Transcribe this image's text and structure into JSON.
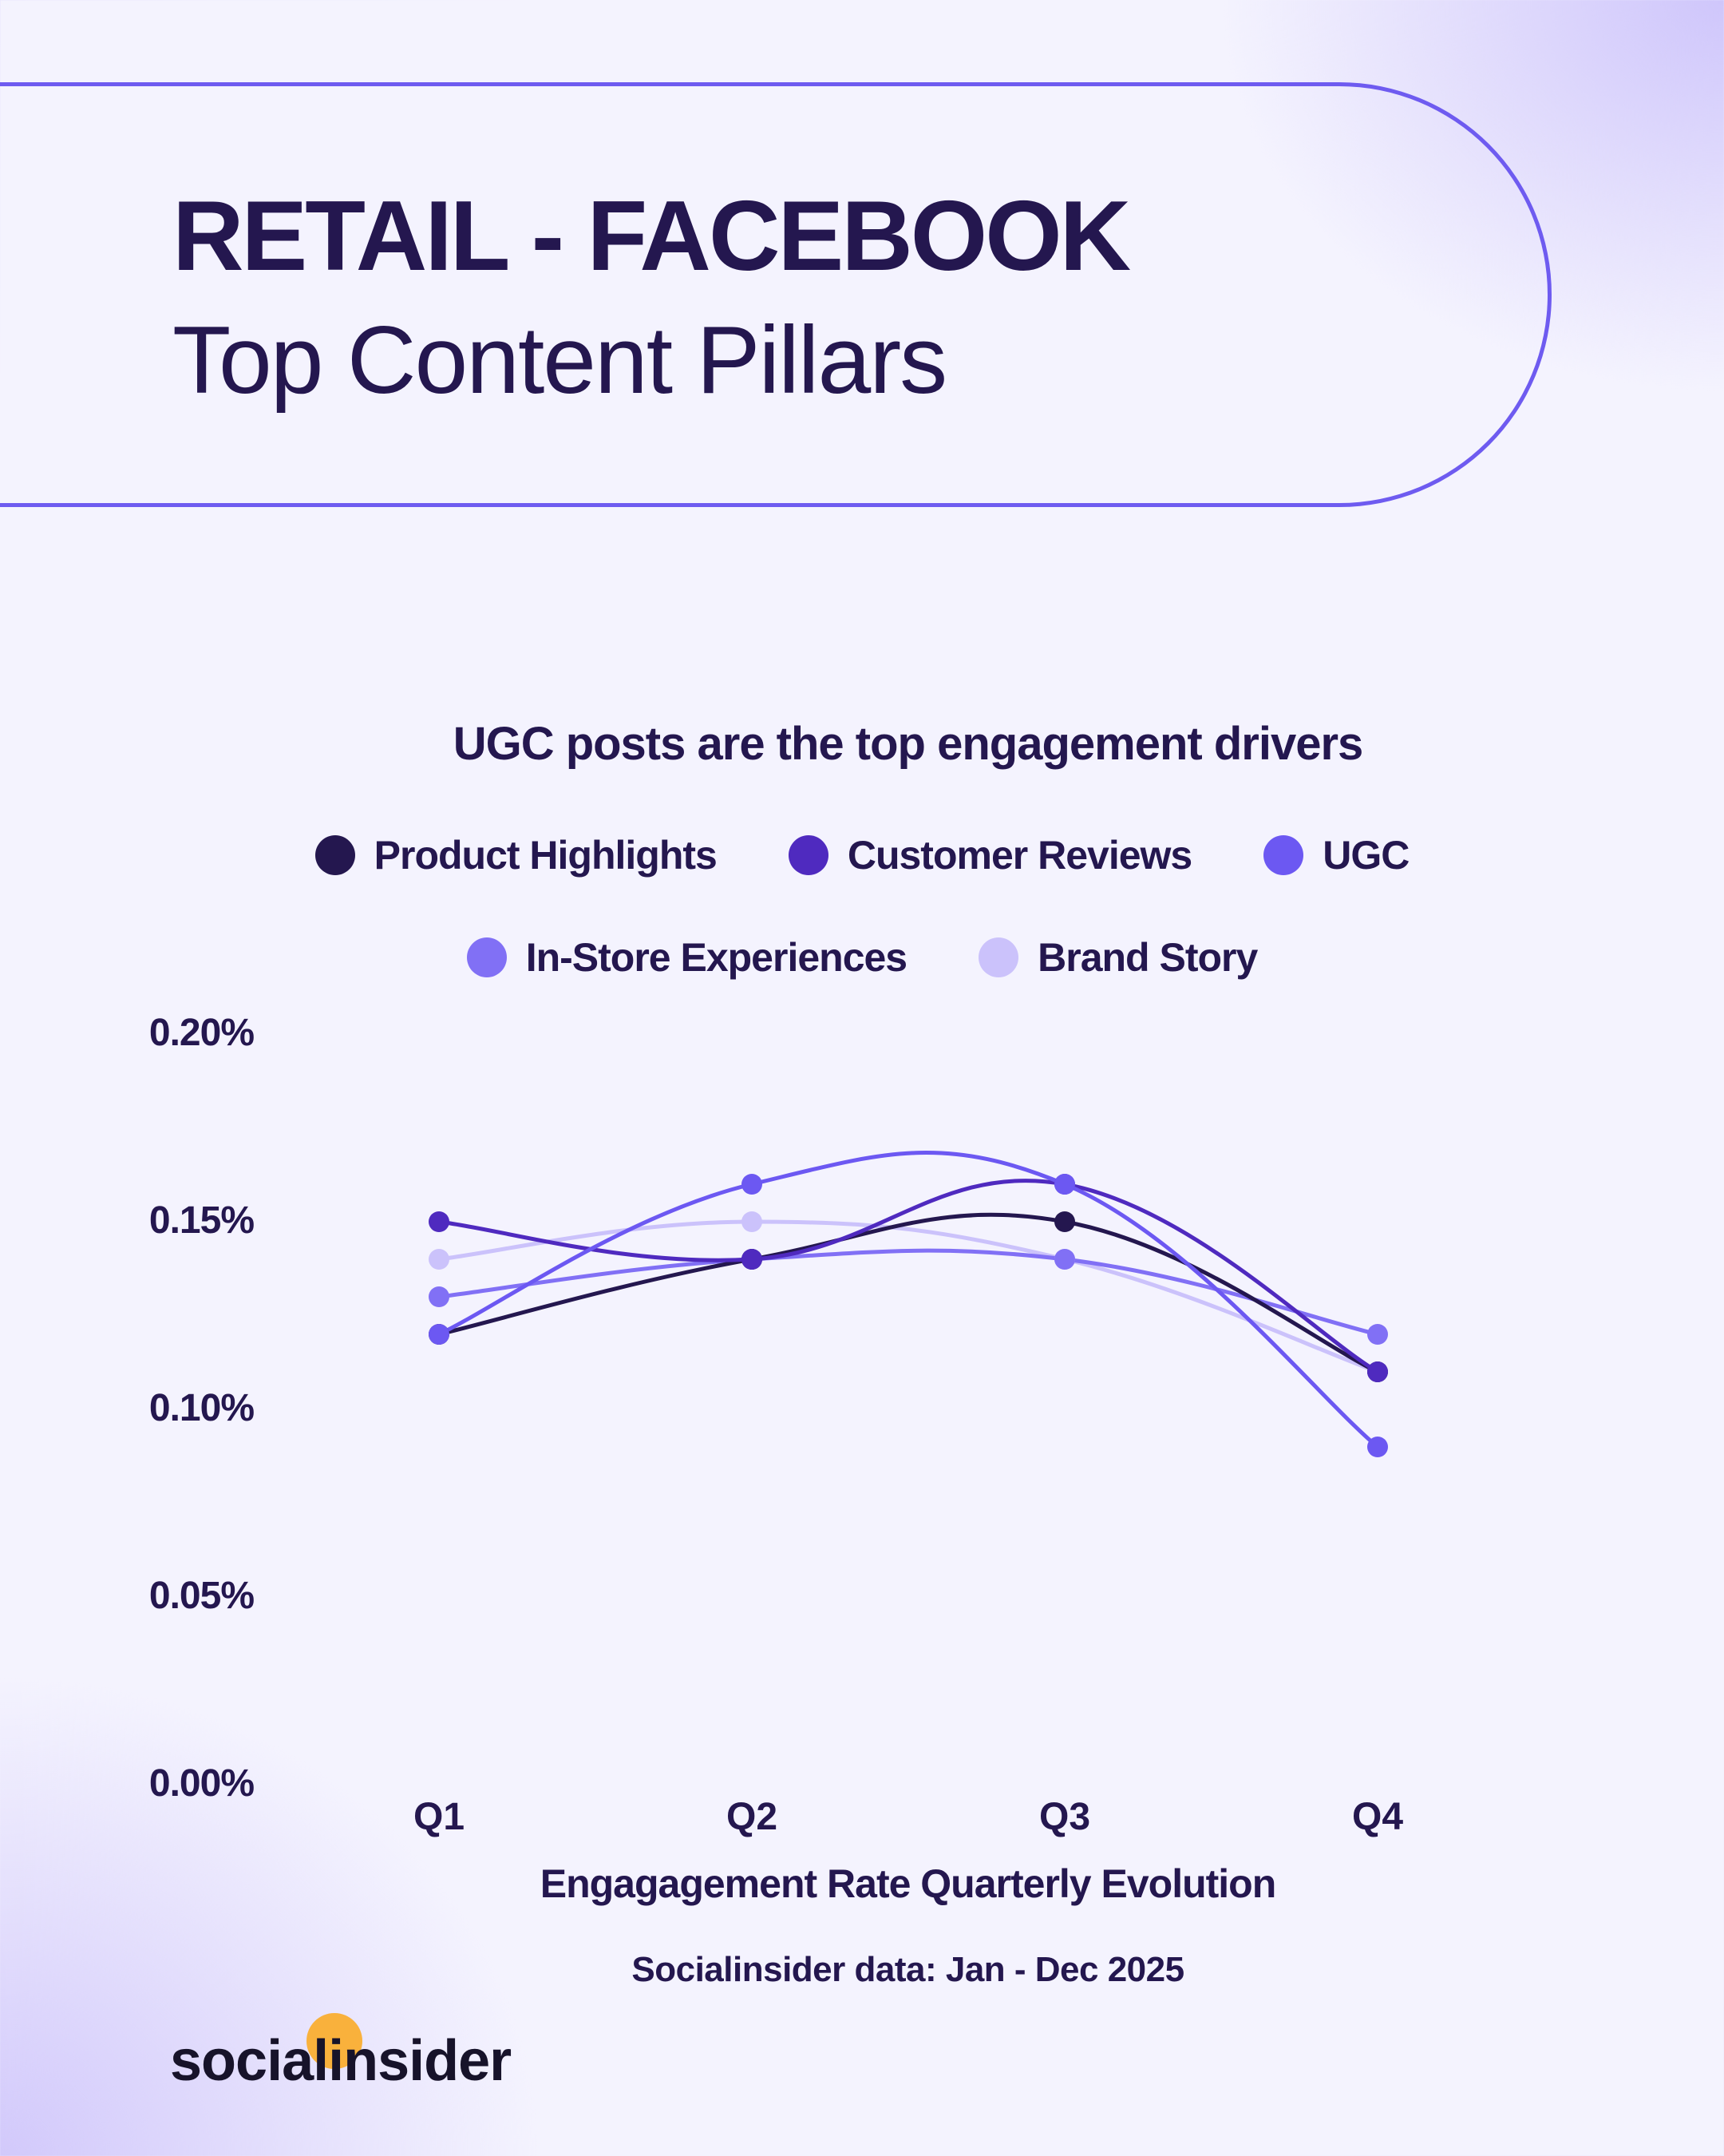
{
  "header": {
    "title": "RETAIL - FACEBOOK",
    "subtitle": "Top Content Pillars"
  },
  "chart": {
    "title": "UGC posts are the top engagement drivers",
    "legend": [
      {
        "label": "Product Highlights",
        "color": "#24174f"
      },
      {
        "label": "Customer Reviews",
        "color": "#4f2abf"
      },
      {
        "label": "UGC",
        "color": "#6c58f2"
      },
      {
        "label": "In-Store Experiences",
        "color": "#8170f5"
      },
      {
        "label": "Brand Story",
        "color": "#cbc2fb"
      }
    ],
    "y_ticks": [
      "0.20%",
      "0.15%",
      "0.10%",
      "0.05%",
      "0.00%"
    ],
    "x_ticks": [
      "Q1",
      "Q2",
      "Q3",
      "Q4"
    ],
    "xlabel": "Engagagement Rate Quarterly Evolution",
    "source": "Socialinsider data: Jan - Dec 2025"
  },
  "chart_data": {
    "type": "line",
    "title": "UGC posts are the top engagement drivers",
    "categories": [
      "Q1",
      "Q2",
      "Q3",
      "Q4"
    ],
    "series": [
      {
        "name": "Product Highlights",
        "values": [
          0.12,
          0.14,
          0.15,
          0.11
        ],
        "color": "#24174f"
      },
      {
        "name": "Customer Reviews",
        "values": [
          0.15,
          0.14,
          0.16,
          0.11
        ],
        "color": "#4f2abf"
      },
      {
        "name": "UGC",
        "values": [
          0.12,
          0.16,
          0.16,
          0.09
        ],
        "color": "#6c58f2"
      },
      {
        "name": "In-Store Experiences",
        "values": [
          0.13,
          0.14,
          0.14,
          0.12
        ],
        "color": "#8170f5"
      },
      {
        "name": "Brand Story",
        "values": [
          0.14,
          0.15,
          0.14,
          0.11
        ],
        "color": "#cbc2fb"
      }
    ],
    "xlabel": "Engagagement Rate Quarterly Evolution",
    "ylabel": "",
    "ylim": [
      0,
      0.2
    ],
    "y_unit": "%",
    "grid": false,
    "legend_position": "top",
    "smooth": true
  },
  "footer": {
    "logo_text": "socialinsider"
  }
}
